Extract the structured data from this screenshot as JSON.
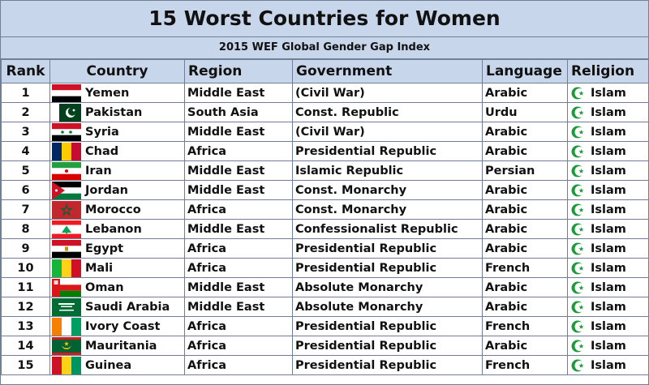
{
  "title": "15 Worst Countries for Women",
  "subtitle": "2015 WEF Global Gender Gap Index",
  "columns": {
    "rank": "Rank",
    "country": "Country",
    "region": "Region",
    "government": "Government",
    "language": "Language",
    "religion": "Religion"
  },
  "colors": {
    "header_bg": "#c7d6ea",
    "border": "#6f7f95",
    "crescent": "#1e9a3c"
  },
  "rows": [
    {
      "rank": "1",
      "country": "Yemen",
      "region": "Middle East",
      "government": "(Civil War)",
      "language": "Arabic",
      "religion": "Islam",
      "flag": "yemen-flag"
    },
    {
      "rank": "2",
      "country": "Pakistan",
      "region": "South Asia",
      "government": "Const. Republic",
      "language": "Urdu",
      "religion": "Islam",
      "flag": "pakistan-flag"
    },
    {
      "rank": "3",
      "country": "Syria",
      "region": "Middle East",
      "government": "(Civil War)",
      "language": "Arabic",
      "religion": "Islam",
      "flag": "syria-flag"
    },
    {
      "rank": "4",
      "country": "Chad",
      "region": "Africa",
      "government": "Presidential Republic",
      "language": "Arabic",
      "religion": "Islam",
      "flag": "chad-flag"
    },
    {
      "rank": "5",
      "country": "Iran",
      "region": "Middle East",
      "government": "Islamic Republic",
      "language": "Persian",
      "religion": "Islam",
      "flag": "iran-flag"
    },
    {
      "rank": "6",
      "country": "Jordan",
      "region": "Middle East",
      "government": "Const. Monarchy",
      "language": "Arabic",
      "religion": "Islam",
      "flag": "jordan-flag"
    },
    {
      "rank": "7",
      "country": "Morocco",
      "region": "Africa",
      "government": "Const. Monarchy",
      "language": "Arabic",
      "religion": "Islam",
      "flag": "morocco-flag"
    },
    {
      "rank": "8",
      "country": "Lebanon",
      "region": "Middle East",
      "government": "Confessionalist Republic",
      "language": "Arabic",
      "religion": "Islam",
      "flag": "lebanon-flag"
    },
    {
      "rank": "9",
      "country": "Egypt",
      "region": "Africa",
      "government": "Presidential Republic",
      "language": "Arabic",
      "religion": "Islam",
      "flag": "egypt-flag"
    },
    {
      "rank": "10",
      "country": "Mali",
      "region": "Africa",
      "government": "Presidential Republic",
      "language": "French",
      "religion": "Islam",
      "flag": "mali-flag"
    },
    {
      "rank": "11",
      "country": "Oman",
      "region": "Middle East",
      "government": "Absolute Monarchy",
      "language": "Arabic",
      "religion": "Islam",
      "flag": "oman-flag"
    },
    {
      "rank": "12",
      "country": "Saudi Arabia",
      "region": "Middle East",
      "government": "Absolute Monarchy",
      "language": "Arabic",
      "religion": "Islam",
      "flag": "saudi-arabia-flag"
    },
    {
      "rank": "13",
      "country": "Ivory Coast",
      "region": "Africa",
      "government": "Presidential Republic",
      "language": "French",
      "religion": "Islam",
      "flag": "ivory-coast-flag"
    },
    {
      "rank": "14",
      "country": "Mauritania",
      "region": "Africa",
      "government": "Presidential Republic",
      "language": "Arabic",
      "religion": "Islam",
      "flag": "mauritania-flag"
    },
    {
      "rank": "15",
      "country": "Guinea",
      "region": "Africa",
      "government": "Presidential Republic",
      "language": "French",
      "religion": "Islam",
      "flag": "guinea-flag"
    }
  ]
}
